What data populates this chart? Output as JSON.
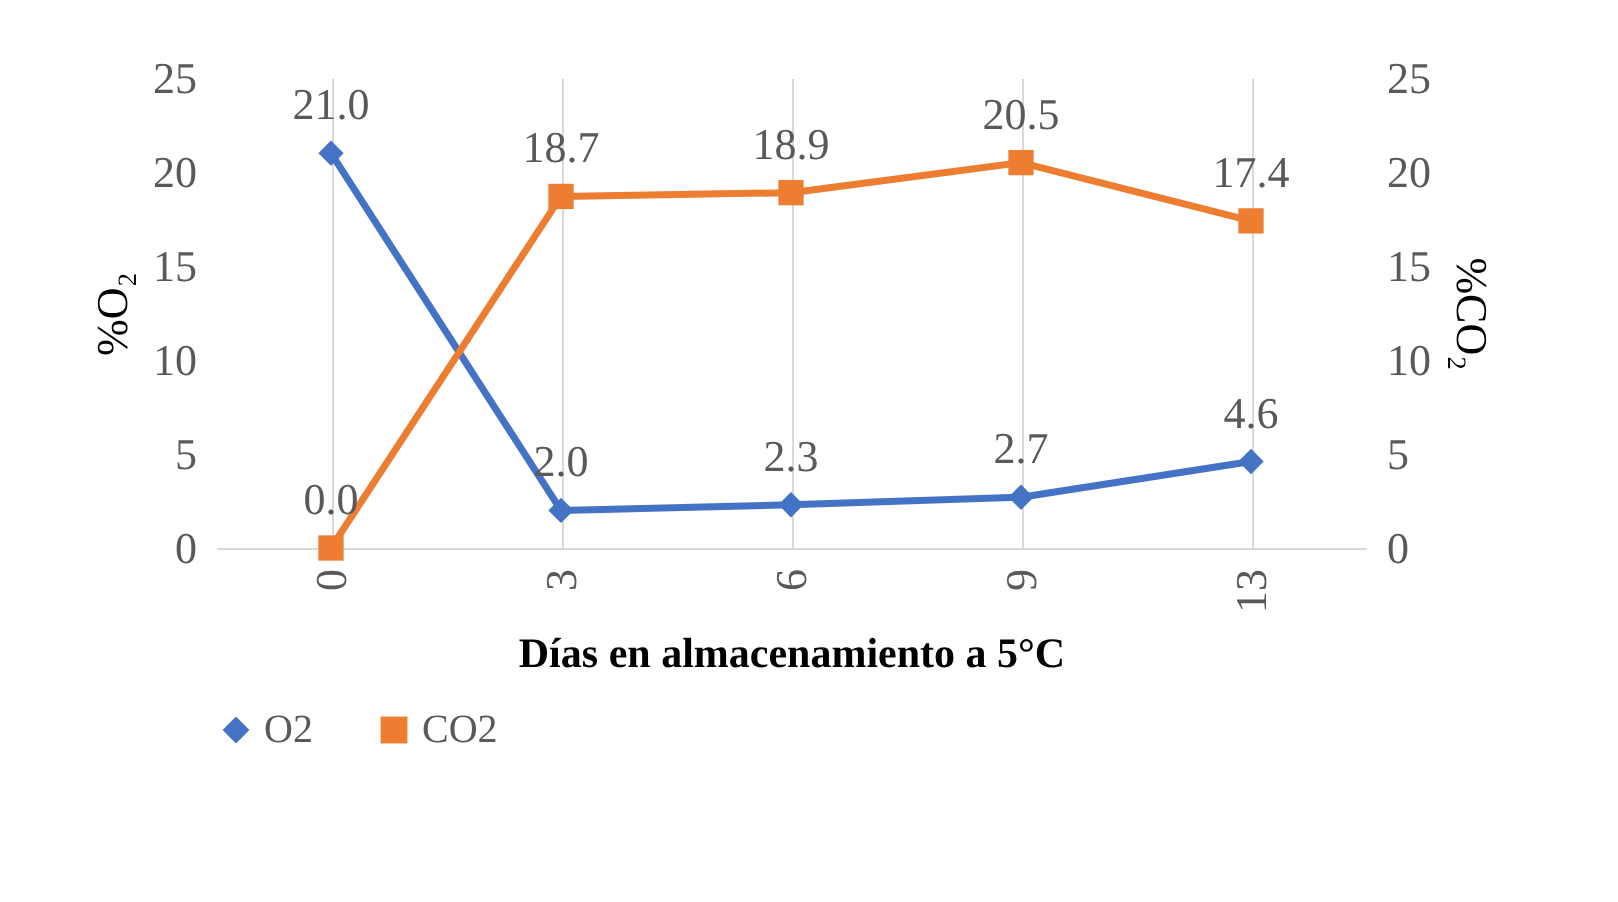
{
  "chart_data": {
    "type": "line",
    "xlabel": "Días en almacenamiento a 5°C",
    "ylabel": "%O₂",
    "y2label": "%CO₂",
    "categories": [
      "0",
      "3",
      "6",
      "9",
      "13"
    ],
    "series": [
      {
        "name": "O2",
        "color": "#4472c4",
        "marker": "diamond",
        "values": [
          21.0,
          2.0,
          2.3,
          2.7,
          4.6
        ],
        "value_labels": [
          "21.0",
          "2.0",
          "2.3",
          "2.7",
          "4.6"
        ]
      },
      {
        "name": "CO2",
        "color": "#ed7d31",
        "marker": "square",
        "axis": "y2",
        "values": [
          0.0,
          18.7,
          18.9,
          20.5,
          17.4
        ],
        "value_labels": [
          "0.0",
          "18.7",
          "18.9",
          "20.5",
          "17.4"
        ]
      }
    ],
    "ylim": [
      0,
      25
    ],
    "yticks": [
      0,
      5,
      10,
      15,
      20,
      25
    ],
    "y2lim": [
      0,
      25
    ],
    "y2ticks": [
      0,
      5,
      10,
      15,
      20,
      25
    ],
    "grid": "x",
    "legend": "bottom",
    "line_style": "solid"
  }
}
